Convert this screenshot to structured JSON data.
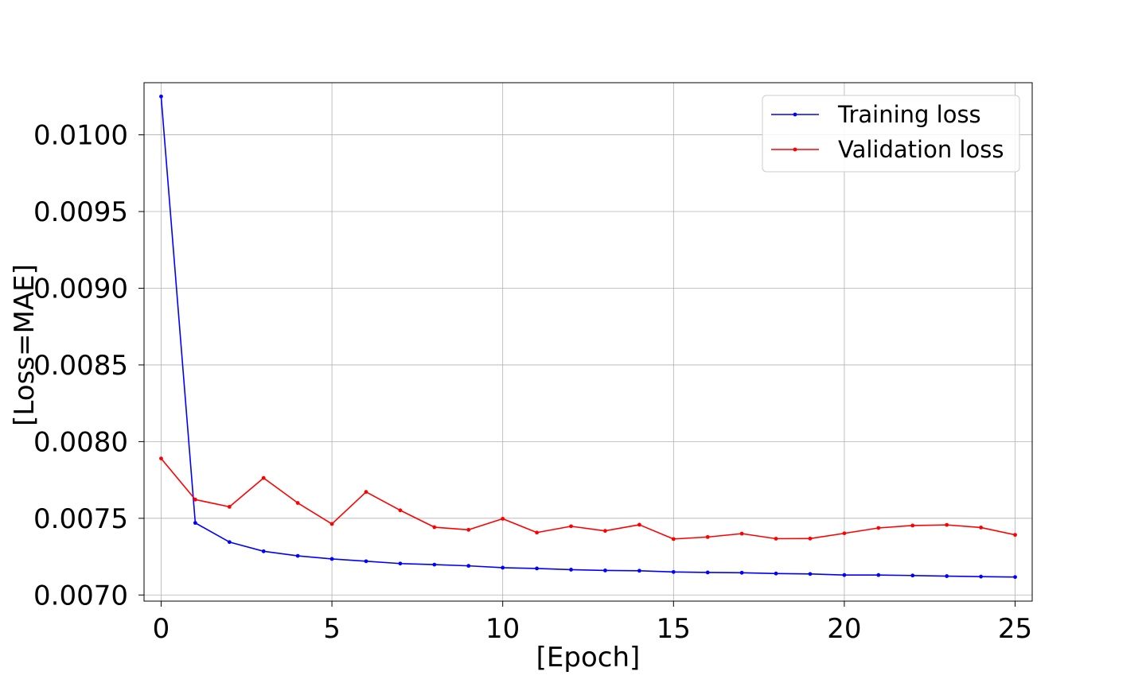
{
  "chart_data": {
    "type": "line",
    "title": "",
    "xlabel": "[Epoch]",
    "ylabel": "[Loss=MAE]",
    "x": [
      0,
      1,
      2,
      3,
      4,
      5,
      6,
      7,
      8,
      9,
      10,
      11,
      12,
      13,
      14,
      15,
      16,
      17,
      18,
      19,
      20,
      21,
      22,
      23,
      24,
      25
    ],
    "xlim": [
      -0.5,
      25.5
    ],
    "ylim": [
      0.00696,
      0.01034
    ],
    "x_ticks": [
      0,
      5,
      10,
      15,
      20,
      25
    ],
    "x_tick_labels": [
      "0",
      "5",
      "10",
      "15",
      "20",
      "25"
    ],
    "y_ticks": [
      0.007,
      0.0075,
      0.008,
      0.0085,
      0.009,
      0.0095,
      0.01
    ],
    "y_tick_labels": [
      "0.0070",
      "0.0075",
      "0.0080",
      "0.0085",
      "0.0090",
      "0.0095",
      "0.0100"
    ],
    "grid": true,
    "legend_position": "top-right",
    "series": [
      {
        "name": "Training loss",
        "color": "#0000ff",
        "values": [
          0.01025,
          0.00747,
          0.007345,
          0.007285,
          0.007255,
          0.007235,
          0.00722,
          0.007205,
          0.007198,
          0.00719,
          0.007178,
          0.007173,
          0.007165,
          0.00716,
          0.007158,
          0.00715,
          0.007147,
          0.007145,
          0.00714,
          0.007137,
          0.00713,
          0.00713,
          0.007127,
          0.007123,
          0.00712,
          0.007117
        ]
      },
      {
        "name": "Validation loss",
        "color": "#ff0000",
        "values": [
          0.00789,
          0.007622,
          0.007575,
          0.007763,
          0.0076,
          0.007463,
          0.007672,
          0.007552,
          0.007442,
          0.007425,
          0.007497,
          0.007407,
          0.007448,
          0.007418,
          0.007458,
          0.007365,
          0.007378,
          0.0074,
          0.007367,
          0.007368,
          0.007402,
          0.007437,
          0.007453,
          0.007457,
          0.00744,
          0.007392
        ]
      }
    ]
  }
}
